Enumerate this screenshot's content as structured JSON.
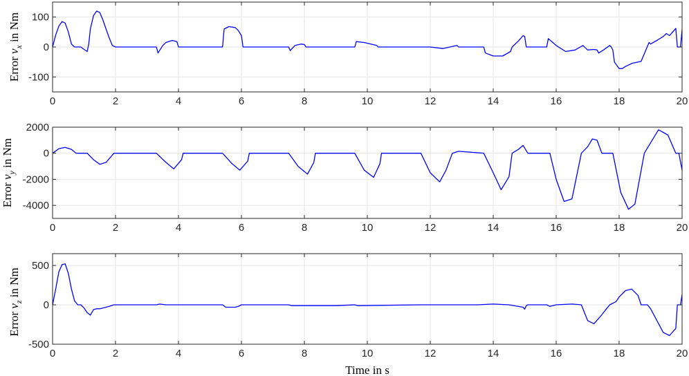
{
  "figure": {
    "xlabel": "Time in s"
  },
  "chart_data": [
    {
      "type": "line",
      "ylabel": "Error ν_x in Nm",
      "ylabel_main": "Error ",
      "ylabel_symbol": "ν",
      "ylabel_sub": "x",
      "ylabel_unit": " in Nm",
      "xlim": [
        0,
        20
      ],
      "ylim": [
        -150,
        150
      ],
      "xticks": [
        0,
        2,
        4,
        6,
        8,
        10,
        12,
        14,
        16,
        18,
        20
      ],
      "yticks": [
        -100,
        0,
        100
      ],
      "ytick_labels": [
        "-100",
        "0",
        "100"
      ],
      "grid": true,
      "line_color": "#0000ff",
      "series": [
        {
          "x": [
            0,
            0.1,
            0.2,
            0.3,
            0.4,
            0.5,
            0.6,
            0.7,
            0.8,
            0.9,
            1.0,
            1.1,
            1.15,
            1.2,
            1.3,
            1.4,
            1.5,
            1.6,
            1.7,
            1.8,
            1.9,
            2.0,
            3.3,
            3.35,
            3.5,
            3.6,
            3.8,
            3.95,
            4.0,
            4.05,
            5.4,
            5.45,
            5.6,
            5.8,
            5.9,
            6.0,
            6.05,
            7.5,
            7.55,
            7.7,
            7.9,
            8.0,
            8.05,
            9.6,
            9.65,
            9.9,
            10.3,
            10.35,
            12.0,
            12.4,
            12.85,
            12.9,
            13.7,
            13.75,
            14.0,
            14.3,
            14.55,
            14.6,
            14.8,
            14.95,
            15.0,
            15.05,
            15.7,
            15.75,
            16.0,
            16.3,
            16.6,
            16.85,
            16.9,
            17.0,
            17.2,
            17.3,
            17.35,
            17.5,
            17.7,
            17.75,
            17.8,
            17.85,
            18.0,
            18.1,
            18.2,
            18.4,
            18.7,
            18.95,
            19.0,
            19.2,
            19.4,
            19.5,
            19.6,
            19.7,
            19.8,
            19.85,
            19.95,
            20.0
          ],
          "y": [
            0,
            40,
            70,
            85,
            80,
            50,
            10,
            0,
            0,
            0,
            -8,
            -15,
            10,
            60,
            105,
            120,
            115,
            90,
            60,
            30,
            5,
            0,
            0,
            -20,
            5,
            15,
            22,
            18,
            0,
            0,
            0,
            60,
            68,
            65,
            55,
            38,
            0,
            0,
            -12,
            5,
            10,
            8,
            0,
            0,
            18,
            15,
            5,
            0,
            0,
            -5,
            5,
            0,
            0,
            -20,
            -30,
            -30,
            -15,
            0,
            20,
            38,
            35,
            0,
            0,
            28,
            5,
            -15,
            -10,
            5,
            0,
            -10,
            -8,
            -10,
            -20,
            -10,
            5,
            0,
            -10,
            -50,
            -72,
            -72,
            -65,
            -55,
            -48,
            15,
            10,
            22,
            35,
            45,
            38,
            50,
            62,
            0,
            0,
            58
          ]
        }
      ]
    },
    {
      "type": "line",
      "ylabel": "Error ν_y in Nm",
      "ylabel_main": "Error ",
      "ylabel_symbol": "ν",
      "ylabel_sub": "y",
      "ylabel_unit": " in Nm",
      "xlim": [
        0,
        20
      ],
      "ylim": [
        -5000,
        2000
      ],
      "xticks": [
        0,
        2,
        4,
        6,
        8,
        10,
        12,
        14,
        16,
        18,
        20
      ],
      "yticks": [
        -4000,
        -2000,
        0,
        2000
      ],
      "ytick_labels": [
        "-4000",
        "-2000",
        "0",
        "2000"
      ],
      "grid": true,
      "line_color": "#0000ff",
      "series": [
        {
          "x": [
            0,
            0.2,
            0.4,
            0.6,
            0.75,
            1.1,
            1.3,
            1.5,
            1.7,
            1.95,
            3.3,
            3.6,
            3.85,
            4.1,
            4.15,
            5.4,
            5.7,
            5.95,
            6.2,
            6.25,
            7.5,
            7.8,
            8.1,
            8.3,
            8.35,
            9.6,
            9.9,
            10.2,
            10.4,
            10.45,
            11.7,
            12.0,
            12.3,
            12.5,
            12.7,
            12.9,
            13.7,
            14.0,
            14.25,
            14.5,
            14.6,
            14.8,
            14.95,
            15.1,
            15.8,
            16.0,
            16.25,
            16.5,
            16.8,
            17.0,
            17.15,
            17.3,
            17.45,
            17.8,
            18.05,
            18.3,
            18.5,
            18.8,
            19.0,
            19.25,
            19.4,
            19.55,
            19.8,
            19.9,
            20.0
          ],
          "y": [
            0,
            350,
            450,
            300,
            0,
            0,
            -500,
            -850,
            -700,
            0,
            0,
            -700,
            -1200,
            -500,
            0,
            0,
            -800,
            -1300,
            -600,
            0,
            0,
            -1000,
            -1600,
            -700,
            0,
            0,
            -1300,
            -1850,
            -800,
            0,
            0,
            -1500,
            -2200,
            -1300,
            0,
            150,
            0,
            -1500,
            -2800,
            -1800,
            0,
            300,
            600,
            0,
            0,
            -2000,
            -3700,
            -3500,
            0,
            500,
            1100,
            1000,
            0,
            0,
            -3000,
            -4300,
            -3900,
            0,
            800,
            1800,
            1600,
            1400,
            0,
            0,
            -1300
          ]
        }
      ]
    },
    {
      "type": "line",
      "ylabel": "Error ν_z in Nm",
      "ylabel_main": "Error ",
      "ylabel_symbol": "ν",
      "ylabel_sub": "z",
      "ylabel_unit": " in Nm",
      "xlim": [
        0,
        20
      ],
      "ylim": [
        -500,
        650
      ],
      "xticks": [
        0,
        2,
        4,
        6,
        8,
        10,
        12,
        14,
        16,
        18,
        20
      ],
      "yticks": [
        -500,
        0,
        500
      ],
      "ytick_labels": [
        "-500",
        "0",
        "500"
      ],
      "grid": true,
      "line_color": "#0000ff",
      "series": [
        {
          "x": [
            0,
            0.1,
            0.2,
            0.3,
            0.4,
            0.5,
            0.6,
            0.7,
            0.8,
            0.9,
            1.0,
            1.1,
            1.2,
            1.3,
            1.4,
            1.5,
            1.6,
            1.8,
            1.95,
            2.0,
            3.3,
            3.4,
            3.6,
            3.9,
            4.0,
            5.4,
            5.5,
            5.8,
            5.9,
            6.0,
            7.5,
            7.6,
            9.0,
            9.6,
            9.7,
            11.7,
            12.5,
            13.5,
            14.0,
            14.5,
            14.95,
            15.0,
            15.05,
            15.1,
            15.7,
            15.8,
            16.0,
            16.5,
            16.8,
            16.9,
            17.0,
            17.2,
            17.4,
            17.6,
            17.7,
            17.9,
            18.0,
            18.2,
            18.4,
            18.6,
            18.7,
            18.9,
            19.0,
            19.2,
            19.4,
            19.6,
            19.8,
            19.85,
            19.95,
            20.0
          ],
          "y": [
            0,
            200,
            420,
            510,
            520,
            400,
            200,
            50,
            0,
            0,
            -40,
            -100,
            -130,
            -60,
            -50,
            -50,
            -40,
            -20,
            0,
            0,
            0,
            10,
            0,
            0,
            0,
            0,
            -30,
            -30,
            -20,
            0,
            0,
            -10,
            -10,
            0,
            -10,
            0,
            0,
            0,
            10,
            0,
            -30,
            -55,
            -10,
            0,
            0,
            -20,
            0,
            10,
            0,
            -100,
            -200,
            -240,
            -150,
            -50,
            0,
            40,
            100,
            180,
            200,
            120,
            0,
            0,
            -50,
            -200,
            -350,
            -390,
            -300,
            0,
            0,
            130
          ]
        }
      ]
    }
  ]
}
